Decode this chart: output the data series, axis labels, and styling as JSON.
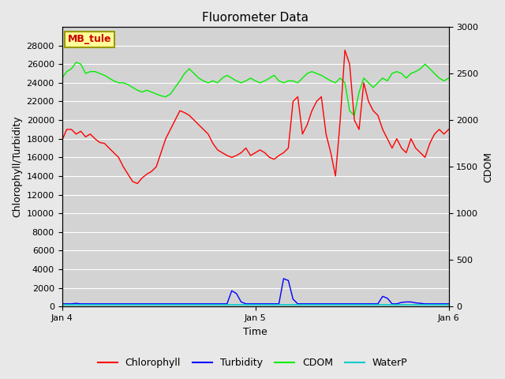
{
  "title": "Fluorometer Data",
  "xlabel": "Time",
  "ylabel_left": "Chlorophyll/Turbidity",
  "ylabel_right": "CDOM",
  "annotation_text": "MB_tule",
  "annotation_color": "#cc0000",
  "annotation_bg": "#ffff99",
  "annotation_border": "#999900",
  "ylim_left": [
    0,
    30000
  ],
  "ylim_right": [
    0,
    3000
  ],
  "bg_color": "#d3d3d3",
  "grid_color": "#ffffff",
  "legend_entries": [
    "Chlorophyll",
    "Turbidity",
    "CDOM",
    "WaterP"
  ],
  "legend_colors": [
    "#ff0000",
    "#0000ff",
    "#00cc00",
    "#00cccc"
  ],
  "chlorophyll": [
    17800,
    19000,
    19000,
    18500,
    18800,
    18200,
    18500,
    18000,
    17600,
    17500,
    17000,
    16500,
    16000,
    15000,
    14200,
    13400,
    13200,
    13800,
    14200,
    14500,
    15000,
    16500,
    18000,
    19000,
    20000,
    21000,
    20800,
    20500,
    20000,
    19500,
    19000,
    18500,
    17500,
    16800,
    16500,
    16200,
    16000,
    16200,
    16500,
    17000,
    16200,
    16500,
    16800,
    16500,
    16000,
    15800,
    16200,
    16500,
    17000,
    22000,
    22500,
    18500,
    19500,
    21000,
    22000,
    22500,
    18500,
    16500,
    14000,
    20000,
    27500,
    26000,
    20000,
    19000,
    24000,
    22000,
    21000,
    20500,
    19000,
    18000,
    17000,
    18000,
    17000,
    16500,
    18000,
    17000,
    16500,
    16000,
    17500,
    18500,
    19000,
    18500,
    19000
  ],
  "cdom": [
    24500,
    25200,
    25500,
    26200,
    26000,
    25000,
    25200,
    25200,
    25000,
    24800,
    24500,
    24200,
    24000,
    24000,
    23800,
    23500,
    23200,
    23000,
    23200,
    23000,
    22800,
    22600,
    22500,
    22800,
    23500,
    24200,
    25000,
    25500,
    25000,
    24500,
    24200,
    24000,
    24200,
    24000,
    24500,
    24800,
    24500,
    24200,
    24000,
    24200,
    24500,
    24200,
    24000,
    24200,
    24500,
    24800,
    24200,
    24000,
    24200,
    24200,
    24000,
    24500,
    25000,
    25200,
    25000,
    24800,
    24500,
    24200,
    24000,
    24500,
    24000,
    21000,
    20500,
    23000,
    24500,
    24000,
    23500,
    24000,
    24500,
    24200,
    25000,
    25200,
    25000,
    24500,
    25000,
    25200,
    25500,
    26000,
    25500,
    25000,
    24500,
    24200,
    24500
  ],
  "turbidity": [
    300,
    300,
    300,
    350,
    300,
    300,
    300,
    300,
    300,
    300,
    300,
    300,
    300,
    300,
    300,
    300,
    300,
    300,
    300,
    300,
    300,
    300,
    300,
    300,
    300,
    300,
    300,
    300,
    300,
    300,
    300,
    300,
    300,
    300,
    300,
    300,
    1700,
    1400,
    500,
    300,
    300,
    300,
    300,
    300,
    300,
    300,
    300,
    3000,
    2800,
    800,
    300,
    300,
    300,
    300,
    300,
    300,
    300,
    300,
    300,
    300,
    300,
    300,
    300,
    300,
    300,
    300,
    300,
    300,
    1100,
    900,
    300,
    300,
    450,
    500,
    500,
    400,
    350,
    300,
    300,
    300,
    300,
    300,
    300
  ],
  "waterp": [
    200,
    200,
    200,
    200,
    200,
    200,
    200,
    200,
    200,
    200,
    200,
    200,
    200,
    200,
    200,
    200,
    200,
    200,
    200,
    200,
    200,
    200,
    200,
    200,
    200,
    200,
    200,
    200,
    200,
    200,
    200,
    200,
    200,
    200,
    200,
    200,
    200,
    200,
    200,
    200,
    200,
    200,
    200,
    200,
    200,
    200,
    200,
    200,
    200,
    200,
    200,
    200,
    200,
    200,
    200,
    200,
    200,
    200,
    200,
    200,
    200,
    200,
    200,
    200,
    200,
    200,
    200,
    200,
    200,
    200,
    200,
    200,
    200,
    200,
    200,
    200,
    200,
    200,
    200,
    200,
    200,
    200,
    200
  ],
  "yticks_left": [
    0,
    2000,
    4000,
    6000,
    8000,
    10000,
    12000,
    14000,
    16000,
    18000,
    20000,
    22000,
    24000,
    26000,
    28000
  ],
  "yticks_right": [
    0,
    500,
    1000,
    1500,
    2000,
    2500,
    3000
  ]
}
